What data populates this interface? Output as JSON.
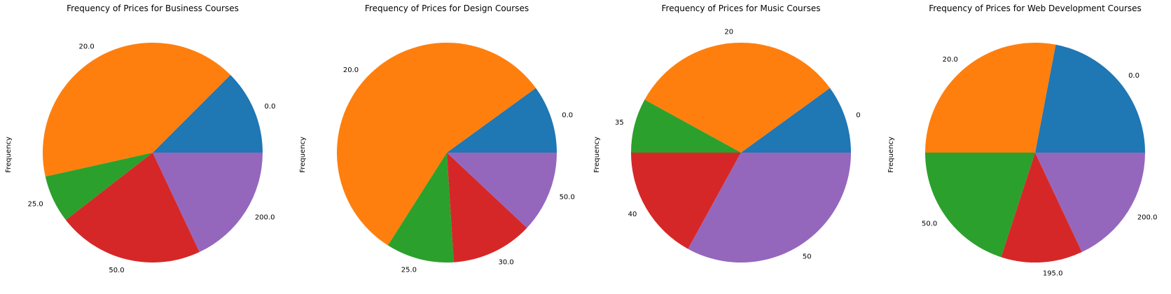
{
  "chart_data": [
    {
      "type": "pie",
      "title": "Frequency of Prices for Business Courses",
      "ylabel": "Frequency",
      "categories": [
        "0.0",
        "20.0",
        "25.0",
        "50.0",
        "200.0"
      ],
      "values": [
        12.5,
        41.0,
        7.0,
        21.5,
        18.0
      ],
      "colors": [
        "#1f77b4",
        "#ff7f0e",
        "#2ca02c",
        "#d62728",
        "#9467bd"
      ]
    },
    {
      "type": "pie",
      "title": "Frequency of Prices for Design Courses",
      "ylabel": "Frequency",
      "categories": [
        "0.0",
        "20.0",
        "25.0",
        "30.0",
        "50.0"
      ],
      "values": [
        10.0,
        56.0,
        10.0,
        12.0,
        12.0
      ],
      "colors": [
        "#1f77b4",
        "#ff7f0e",
        "#2ca02c",
        "#d62728",
        "#9467bd"
      ]
    },
    {
      "type": "pie",
      "title": "Frequency of Prices for Music Courses",
      "ylabel": "Frequency",
      "categories": [
        "0",
        "20",
        "35",
        "40",
        "50"
      ],
      "values": [
        10.0,
        32.0,
        8.0,
        17.0,
        33.0
      ],
      "colors": [
        "#1f77b4",
        "#ff7f0e",
        "#2ca02c",
        "#d62728",
        "#9467bd"
      ]
    },
    {
      "type": "pie",
      "title": "Frequency of Prices for Web Development Courses",
      "ylabel": "Frequency",
      "categories": [
        "0.0",
        "20.0",
        "50.0",
        "195.0",
        "200.0"
      ],
      "values": [
        22.0,
        28.0,
        20.0,
        12.0,
        18.0
      ],
      "colors": [
        "#1f77b4",
        "#ff7f0e",
        "#2ca02c",
        "#d62728",
        "#9467bd"
      ]
    }
  ]
}
